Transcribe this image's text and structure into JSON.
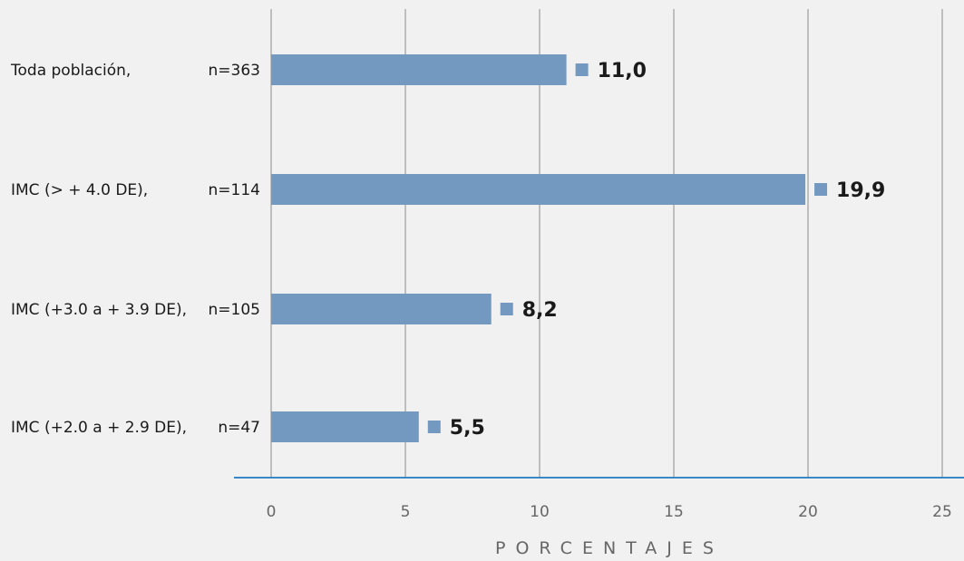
{
  "chart_data": {
    "type": "bar",
    "orientation": "horizontal",
    "categories": [
      {
        "label": "Toda población,",
        "n": "n=363"
      },
      {
        "label": "IMC  (> + 4.0 DE),",
        "n": "n=114"
      },
      {
        "label": "IMC  (+3.0 a + 3.9 DE),",
        "n": "n=105"
      },
      {
        "label": "IMC  (+2.0 a + 2.9 DE),",
        "n": "n=47"
      }
    ],
    "values": [
      11.0,
      19.9,
      8.2,
      5.5
    ],
    "value_labels": [
      "11,0",
      "19,9",
      "8,2",
      "5,5"
    ],
    "xlim": [
      0,
      25
    ],
    "xticks": [
      0,
      5,
      10,
      15,
      20,
      25
    ],
    "xlabel": "PORCENTAJES",
    "grid": "vertical",
    "colors": {
      "bar": "#7399c0",
      "grid": "#8c8c8c",
      "baseline": "#3a87c8",
      "background": "#f0f1f0"
    }
  }
}
